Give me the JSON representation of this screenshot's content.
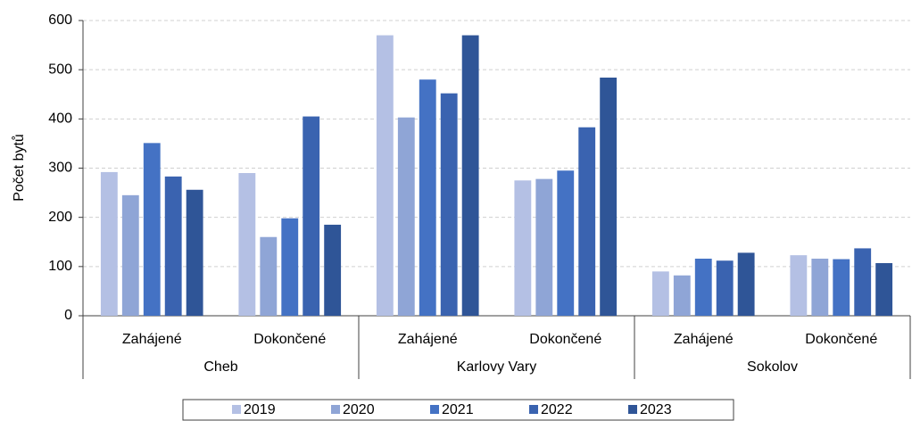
{
  "chart_data": {
    "type": "bar",
    "y_label": "Počet bytů",
    "groups": [
      "Cheb",
      "Karlovy Vary",
      "Sokolov"
    ],
    "categories": [
      "Zahájené",
      "Dokončené",
      "Zahájené",
      "Dokončené",
      "Zahájené",
      "Dokončené"
    ],
    "series": [
      {
        "name": "2019",
        "color": "#b4c0e4",
        "values": [
          292,
          290,
          570,
          275,
          90,
          123
        ]
      },
      {
        "name": "2020",
        "color": "#8fa5d6",
        "values": [
          245,
          160,
          403,
          278,
          82,
          116
        ]
      },
      {
        "name": "2021",
        "color": "#4472c4",
        "values": [
          351,
          198,
          480,
          295,
          116,
          115
        ]
      },
      {
        "name": "2022",
        "color": "#3a63b0",
        "values": [
          283,
          405,
          452,
          383,
          112,
          137
        ]
      },
      {
        "name": "2023",
        "color": "#2f5597",
        "values": [
          256,
          185,
          570,
          484,
          128,
          107
        ]
      }
    ],
    "ylim": [
      0,
      600
    ],
    "yticks": [
      0,
      100,
      200,
      300,
      400,
      500,
      600
    ],
    "grid": true,
    "legend": "bottom"
  }
}
